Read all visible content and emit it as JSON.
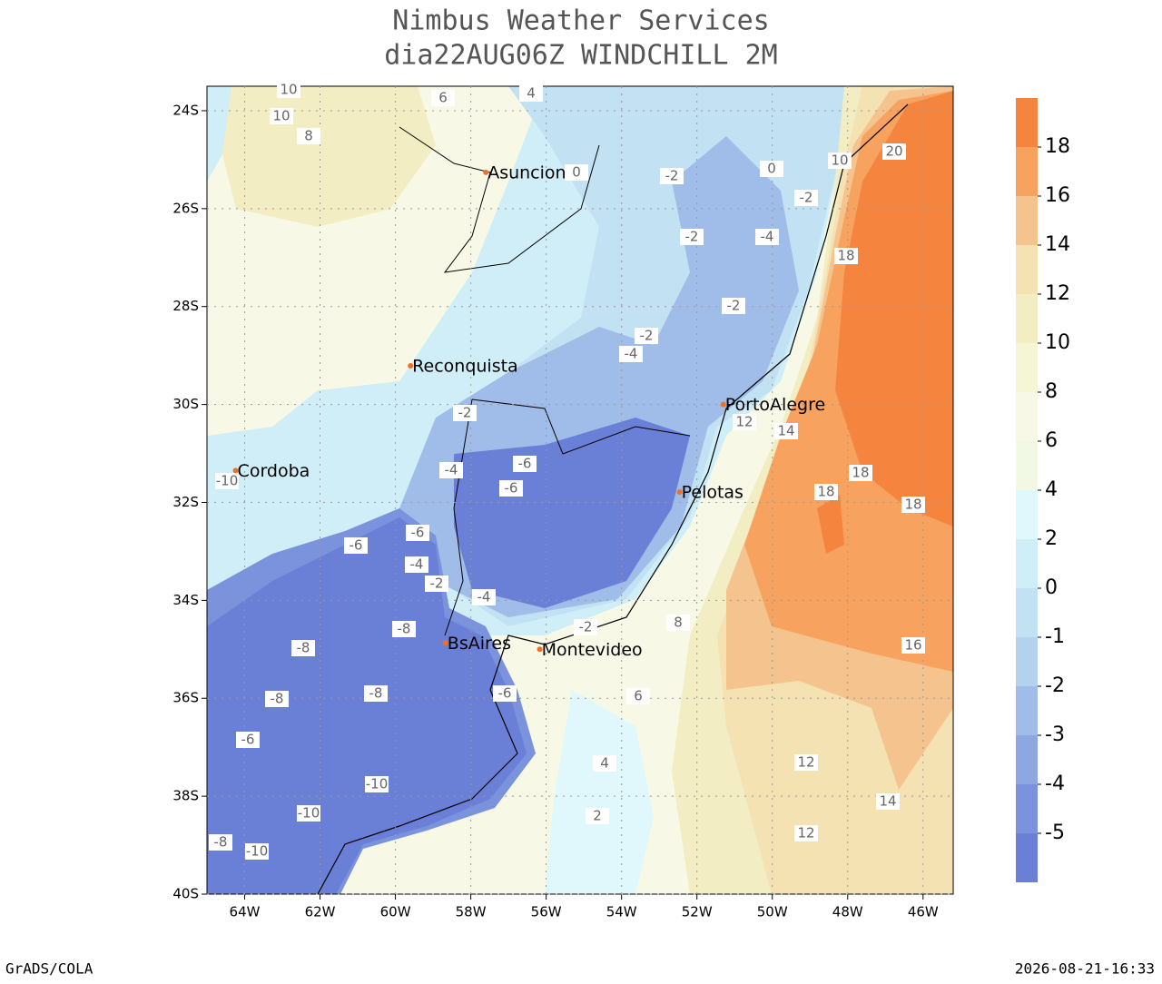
{
  "header": {
    "title": "Nimbus Weather Services",
    "subtitle": "dia22AUG06Z WINDCHILL 2M"
  },
  "map": {
    "lon_range": [
      -65,
      -45.2
    ],
    "lat_range": [
      -23.5,
      -40
    ],
    "xticks": [
      {
        "value": -64,
        "label": "64W"
      },
      {
        "value": -62,
        "label": "62W"
      },
      {
        "value": -60,
        "label": "60W"
      },
      {
        "value": -58,
        "label": "58W"
      },
      {
        "value": -56,
        "label": "56W"
      },
      {
        "value": -54,
        "label": "54W"
      },
      {
        "value": -52,
        "label": "52W"
      },
      {
        "value": -50,
        "label": "50W"
      },
      {
        "value": -48,
        "label": "48W"
      },
      {
        "value": -46,
        "label": "46W"
      }
    ],
    "yticks": [
      {
        "value": -24,
        "label": "24S"
      },
      {
        "value": -26,
        "label": "26S"
      },
      {
        "value": -28,
        "label": "28S"
      },
      {
        "value": -30,
        "label": "30S"
      },
      {
        "value": -32,
        "label": "32S"
      },
      {
        "value": -34,
        "label": "34S"
      },
      {
        "value": -36,
        "label": "36S"
      },
      {
        "value": -38,
        "label": "38S"
      },
      {
        "value": -40,
        "label": "40S"
      }
    ],
    "cities": [
      {
        "name": "Asuncion",
        "lon": -57.6,
        "lat": -25.26
      },
      {
        "name": "Reconquista",
        "lon": -59.6,
        "lat": -29.21
      },
      {
        "name": "Cordoba",
        "lon": -64.24,
        "lat": -31.35
      },
      {
        "name": "PortoAlegre",
        "lon": -51.3,
        "lat": -30.0
      },
      {
        "name": "Pelotas",
        "lon": -52.46,
        "lat": -31.79
      },
      {
        "name": "BsAires",
        "lon": -58.67,
        "lat": -34.87
      },
      {
        "name": "Montevideo",
        "lon": -56.17,
        "lat": -35.0
      }
    ],
    "contour_labels": [
      10,
      8,
      10,
      6,
      4,
      0,
      -2,
      0,
      -2,
      -4,
      -2,
      -2,
      -4,
      -2,
      -2,
      -6,
      -6,
      -4,
      -6,
      -6,
      -4,
      -2,
      -4,
      -2,
      -8,
      -8,
      -8,
      -8,
      -6,
      -10,
      -10,
      -10,
      -6,
      20,
      18,
      18,
      18,
      18,
      14,
      16,
      12,
      14,
      12,
      12,
      10,
      8,
      6,
      4,
      2,
      -8,
      -10
    ]
  },
  "colorbar": {
    "levels": [
      18,
      16,
      14,
      12,
      10,
      8,
      6,
      4,
      2,
      0,
      -1,
      -2,
      -3,
      -4,
      -5
    ],
    "colors": [
      "#f5843f",
      "#f8a25f",
      "#f5c38e",
      "#f4e2b3",
      "#f2edc3",
      "#f4f6d6",
      "#f7f9e6",
      "#f1f9e4",
      "#e0f8fb",
      "#d0eef8",
      "#c2e1f3",
      "#b2d2ee",
      "#9fbde8",
      "#8ca7e2",
      "#7b92dc",
      "#6a7fd6"
    ]
  },
  "footer": {
    "left": "GrADS/COLA",
    "right": "2026-08-21-16:33"
  }
}
